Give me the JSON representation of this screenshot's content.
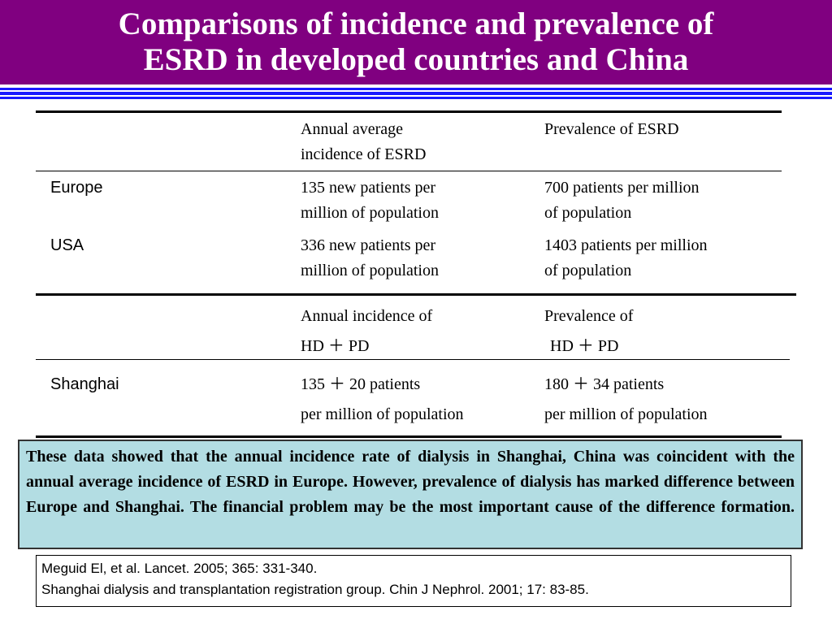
{
  "header": {
    "title": [
      "Comparisons of incidence and prevalence of",
      "ESRD in developed countries and China"
    ]
  },
  "table1": {
    "header": [
      [],
      [
        "Annual average",
        "incidence of ESRD"
      ],
      [
        "Prevalence of ESRD"
      ]
    ],
    "rows": [
      [
        [
          "Europe"
        ],
        [
          "135 new patients per",
          "million of population"
        ],
        [
          "700 patients per million",
          "of population"
        ]
      ],
      [
        [
          "USA"
        ],
        [
          "336 new patients per",
          "million of population"
        ],
        [
          "1403 patients per million",
          "of population"
        ]
      ]
    ]
  },
  "table2": {
    "header": [
      [],
      [
        "Annual incidence of",
        "HD ＋ PD"
      ],
      [
        "Prevalence of",
        "HD ＋ PD"
      ]
    ],
    "rows": [
      [
        [
          "Shanghai"
        ],
        [
          "135 ＋ 20 patients",
          "per million of population"
        ],
        [
          "180 ＋ 34 patients",
          "per million of population"
        ]
      ]
    ]
  },
  "summary": "These data showed that the annual incidence rate of dialysis in Shanghai, China was coincident with the annual average incidence of ESRD in Europe. However, prevalence of dialysis has marked difference between Europe and Shanghai. The financial problem may be the most important cause of the difference formation.",
  "references": [
    "Meguid El, et al. Lancet. 2005; 365: 331-340.",
    "Shanghai dialysis and transplantation registration group. Chin J Nephrol. 2001; 17: 83-85."
  ]
}
